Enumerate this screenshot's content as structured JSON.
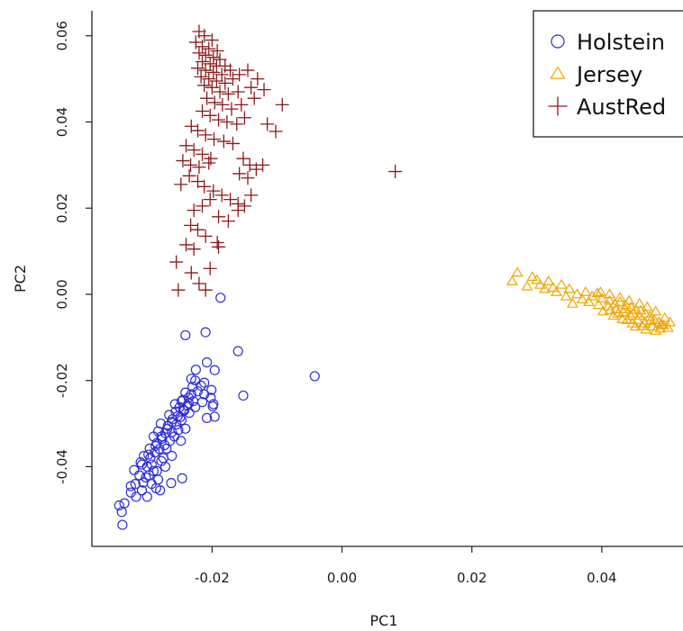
{
  "chart_data": {
    "type": "scatter",
    "title": "",
    "xlabel": "PC1",
    "ylabel": "PC2",
    "xlim": [
      -0.0385,
      0.0525
    ],
    "ylim": [
      -0.0585,
      0.0658
    ],
    "x_ticks": [
      -0.02,
      0.0,
      0.02,
      0.04
    ],
    "x_tick_labels": [
      "-0.02",
      "0.00",
      "0.02",
      "0.04"
    ],
    "y_ticks": [
      -0.04,
      -0.02,
      0.0,
      0.02,
      0.04,
      0.06
    ],
    "y_tick_labels": [
      "-0.04",
      "-0.02",
      "0.00",
      "0.02",
      "0.04",
      "0.06"
    ],
    "grid": false,
    "legend_position": "top-right",
    "series": [
      {
        "name": "Holstein",
        "marker": "circle",
        "color": "#2d2dd6",
        "points": [
          [
            -0.0187,
            -0.0008
          ],
          [
            -0.0241,
            -0.0095
          ],
          [
            -0.021,
            -0.0088
          ],
          [
            -0.016,
            -0.0132
          ],
          [
            -0.0042,
            -0.019
          ],
          [
            -0.0152,
            -0.0235
          ],
          [
            -0.0208,
            -0.0158
          ],
          [
            -0.0225,
            -0.0175
          ],
          [
            -0.0196,
            -0.0176
          ],
          [
            -0.0232,
            -0.0196
          ],
          [
            -0.0212,
            -0.0205
          ],
          [
            -0.0201,
            -0.0222
          ],
          [
            -0.0199,
            -0.026
          ],
          [
            -0.0196,
            -0.0284
          ],
          [
            -0.0208,
            -0.0287
          ],
          [
            -0.0232,
            -0.0232
          ],
          [
            -0.0247,
            -0.0248
          ],
          [
            -0.0246,
            -0.0427
          ],
          [
            -0.0263,
            -0.0438
          ],
          [
            -0.0286,
            -0.045
          ],
          [
            -0.0325,
            -0.046
          ],
          [
            -0.0335,
            -0.0485
          ],
          [
            -0.0343,
            -0.049
          ],
          [
            -0.0339,
            -0.0505
          ],
          [
            -0.0338,
            -0.0535
          ],
          [
            -0.03,
            -0.047
          ],
          [
            -0.028,
            -0.0455
          ],
          [
            -0.0308,
            -0.0455
          ],
          [
            -0.0306,
            -0.0437
          ],
          [
            -0.0318,
            -0.044
          ],
          [
            -0.0297,
            -0.042
          ],
          [
            -0.0285,
            -0.041
          ],
          [
            -0.03,
            -0.04
          ],
          [
            -0.0293,
            -0.0395
          ],
          [
            -0.0278,
            -0.0387
          ],
          [
            -0.0295,
            -0.038
          ],
          [
            -0.031,
            -0.039
          ],
          [
            -0.0305,
            -0.0375
          ],
          [
            -0.0288,
            -0.0367
          ],
          [
            -0.0281,
            -0.0359
          ],
          [
            -0.0296,
            -0.0358
          ],
          [
            -0.0273,
            -0.035
          ],
          [
            -0.0285,
            -0.0345
          ],
          [
            -0.029,
            -0.033
          ],
          [
            -0.0277,
            -0.0335
          ],
          [
            -0.0265,
            -0.034
          ],
          [
            -0.0272,
            -0.0322
          ],
          [
            -0.0283,
            -0.0318
          ],
          [
            -0.0262,
            -0.032
          ],
          [
            -0.0268,
            -0.0305
          ],
          [
            -0.0279,
            -0.03
          ],
          [
            -0.0255,
            -0.0302
          ],
          [
            -0.0261,
            -0.029
          ],
          [
            -0.0249,
            -0.0285
          ],
          [
            -0.0266,
            -0.028
          ],
          [
            -0.0256,
            -0.0272
          ],
          [
            -0.0243,
            -0.027
          ],
          [
            -0.025,
            -0.0262
          ],
          [
            -0.0238,
            -0.0258
          ],
          [
            -0.0257,
            -0.0255
          ],
          [
            -0.0245,
            -0.0245
          ],
          [
            -0.0236,
            -0.024
          ],
          [
            -0.0229,
            -0.0248
          ],
          [
            -0.0241,
            -0.0228
          ],
          [
            -0.0222,
            -0.0225
          ],
          [
            -0.023,
            -0.0215
          ],
          [
            -0.0217,
            -0.0212
          ],
          [
            -0.0226,
            -0.02
          ],
          [
            -0.0212,
            -0.0232
          ],
          [
            -0.0202,
            -0.024
          ],
          [
            -0.0215,
            -0.025
          ],
          [
            -0.0198,
            -0.0255
          ],
          [
            -0.0226,
            -0.0262
          ],
          [
            -0.0235,
            -0.0275
          ],
          [
            -0.0247,
            -0.0292
          ],
          [
            -0.0252,
            -0.0315
          ],
          [
            -0.0241,
            -0.0312
          ],
          [
            -0.0258,
            -0.033
          ],
          [
            -0.027,
            -0.0358
          ],
          [
            -0.0262,
            -0.0375
          ],
          [
            -0.0275,
            -0.038
          ],
          [
            -0.029,
            -0.041
          ],
          [
            -0.0302,
            -0.0425
          ],
          [
            -0.0312,
            -0.042
          ],
          [
            -0.032,
            -0.0408
          ],
          [
            -0.0308,
            -0.0395
          ],
          [
            -0.0298,
            -0.0372
          ],
          [
            -0.0287,
            -0.0352
          ],
          [
            -0.0278,
            -0.033
          ],
          [
            -0.0269,
            -0.0312
          ],
          [
            -0.0262,
            -0.0296
          ],
          [
            -0.0253,
            -0.0283
          ],
          [
            -0.0244,
            -0.0268
          ],
          [
            -0.0236,
            -0.0253
          ],
          [
            -0.0248,
            -0.034
          ],
          [
            -0.0283,
            -0.043
          ],
          [
            -0.0272,
            -0.04
          ],
          [
            -0.0293,
            -0.044
          ],
          [
            -0.0317,
            -0.047
          ],
          [
            -0.0325,
            -0.0445
          ]
        ]
      },
      {
        "name": "Jersey",
        "marker": "triangle",
        "color": "#f2a500",
        "points": [
          [
            0.027,
            0.005
          ],
          [
            0.0262,
            0.003
          ],
          [
            0.0293,
            0.004
          ],
          [
            0.03,
            0.0033
          ],
          [
            0.0285,
            0.0018
          ],
          [
            0.0305,
            0.0022
          ],
          [
            0.0318,
            0.003
          ],
          [
            0.0325,
            0.0015
          ],
          [
            0.0338,
            0.0022
          ],
          [
            0.035,
            0.0012
          ],
          [
            0.0362,
            0.0
          ],
          [
            0.0375,
            0.0005
          ],
          [
            0.0355,
            -0.0022
          ],
          [
            0.037,
            -0.0012
          ],
          [
            0.0385,
            -0.0005
          ],
          [
            0.0393,
            0.0002
          ],
          [
            0.04,
            -0.001
          ],
          [
            0.0412,
            -0.0015
          ],
          [
            0.042,
            -0.0022
          ],
          [
            0.0428,
            -0.0018
          ],
          [
            0.0437,
            -0.0025
          ],
          [
            0.0445,
            -0.003
          ],
          [
            0.0452,
            -0.0036
          ],
          [
            0.046,
            -0.0038
          ],
          [
            0.0467,
            -0.0045
          ],
          [
            0.0474,
            -0.0052
          ],
          [
            0.0481,
            -0.006
          ],
          [
            0.0488,
            -0.0065
          ],
          [
            0.0495,
            -0.0072
          ],
          [
            0.0502,
            -0.0078
          ],
          [
            0.049,
            -0.008
          ],
          [
            0.0478,
            -0.0075
          ],
          [
            0.0466,
            -0.0068
          ],
          [
            0.0455,
            -0.006
          ],
          [
            0.0444,
            -0.005
          ],
          [
            0.0433,
            -0.0042
          ],
          [
            0.0422,
            -0.0035
          ],
          [
            0.041,
            -0.0028
          ],
          [
            0.0402,
            -0.004
          ],
          [
            0.0418,
            -0.005
          ],
          [
            0.0432,
            -0.0058
          ],
          [
            0.0447,
            -0.0068
          ],
          [
            0.0462,
            -0.0074
          ],
          [
            0.0483,
            -0.0085
          ],
          [
            0.047,
            -0.003
          ],
          [
            0.0458,
            -0.0022
          ],
          [
            0.0442,
            -0.0015
          ],
          [
            0.0428,
            -0.0008
          ],
          [
            0.0412,
            0.0
          ],
          [
            0.0398,
            0.0005
          ],
          [
            0.0483,
            -0.004
          ],
          [
            0.0497,
            -0.0055
          ],
          [
            0.0505,
            -0.0065
          ],
          [
            0.038,
            -0.0018
          ],
          [
            0.0395,
            -0.0025
          ],
          [
            0.0345,
            -0.0005
          ],
          [
            0.033,
            0.0005
          ],
          [
            0.0312,
            0.0012
          ],
          [
            0.0448,
            -0.0045
          ],
          [
            0.0436,
            -0.0035
          ],
          [
            0.0425,
            -0.0045
          ],
          [
            0.0413,
            -0.0038
          ],
          [
            0.0475,
            -0.0062
          ],
          [
            0.0492,
            -0.007
          ],
          [
            0.0458,
            -0.005
          ],
          [
            0.0439,
            -0.006
          ],
          [
            0.0452,
            -0.0075
          ],
          [
            0.0468,
            -0.0082
          ]
        ]
      },
      {
        "name": "AustRed",
        "marker": "plus",
        "color": "#8b1a1a",
        "points": [
          [
            -0.022,
            0.061
          ],
          [
            -0.0212,
            0.06
          ],
          [
            -0.02,
            0.059
          ],
          [
            -0.0225,
            0.0585
          ],
          [
            -0.0215,
            0.0575
          ],
          [
            -0.0205,
            0.057
          ],
          [
            -0.0192,
            0.0565
          ],
          [
            -0.022,
            0.056
          ],
          [
            -0.021,
            0.0555
          ],
          [
            -0.0198,
            0.055
          ],
          [
            -0.0188,
            0.0545
          ],
          [
            -0.0215,
            0.054
          ],
          [
            -0.0203,
            0.0535
          ],
          [
            -0.0193,
            0.053
          ],
          [
            -0.018,
            0.053
          ],
          [
            -0.0222,
            0.0525
          ],
          [
            -0.021,
            0.052
          ],
          [
            -0.0198,
            0.0515
          ],
          [
            -0.0185,
            0.051
          ],
          [
            -0.0172,
            0.052
          ],
          [
            -0.0217,
            0.0505
          ],
          [
            -0.0205,
            0.05
          ],
          [
            -0.0193,
            0.0495
          ],
          [
            -0.018,
            0.049
          ],
          [
            -0.0168,
            0.05
          ],
          [
            -0.0158,
            0.051
          ],
          [
            -0.0145,
            0.052
          ],
          [
            -0.013,
            0.05
          ],
          [
            -0.0212,
            0.0485
          ],
          [
            -0.02,
            0.048
          ],
          [
            -0.0188,
            0.047
          ],
          [
            -0.0175,
            0.0465
          ],
          [
            -0.016,
            0.047
          ],
          [
            -0.014,
            0.048
          ],
          [
            -0.012,
            0.0475
          ],
          [
            -0.0092,
            0.044
          ],
          [
            -0.0208,
            0.0455
          ],
          [
            -0.0196,
            0.0445
          ],
          [
            -0.0184,
            0.044
          ],
          [
            -0.017,
            0.043
          ],
          [
            -0.0155,
            0.044
          ],
          [
            -0.0135,
            0.0455
          ],
          [
            -0.0115,
            0.0395
          ],
          [
            -0.0102,
            0.0378
          ],
          [
            -0.0215,
            0.0425
          ],
          [
            -0.0203,
            0.0415
          ],
          [
            -0.019,
            0.0405
          ],
          [
            -0.0177,
            0.04
          ],
          [
            -0.0162,
            0.0395
          ],
          [
            -0.015,
            0.041
          ],
          [
            -0.0232,
            0.039
          ],
          [
            -0.0222,
            0.038
          ],
          [
            -0.021,
            0.037
          ],
          [
            -0.0197,
            0.036
          ],
          [
            -0.0182,
            0.0355
          ],
          [
            -0.0168,
            0.035
          ],
          [
            -0.024,
            0.0345
          ],
          [
            -0.0228,
            0.0335
          ],
          [
            -0.0215,
            0.0325
          ],
          [
            -0.0202,
            0.0315
          ],
          [
            -0.0245,
            0.031
          ],
          [
            -0.0233,
            0.03
          ],
          [
            -0.022,
            0.0295
          ],
          [
            -0.0205,
            0.0305
          ],
          [
            -0.0152,
            0.0315
          ],
          [
            -0.0142,
            0.03
          ],
          [
            -0.0132,
            0.029
          ],
          [
            -0.0122,
            0.03
          ],
          [
            -0.0158,
            0.028
          ],
          [
            -0.0145,
            0.027
          ],
          [
            -0.0235,
            0.0275
          ],
          [
            -0.0222,
            0.0262
          ],
          [
            -0.0248,
            0.0255
          ],
          [
            -0.0212,
            0.025
          ],
          [
            -0.0198,
            0.024
          ],
          [
            -0.0185,
            0.023
          ],
          [
            -0.0172,
            0.022
          ],
          [
            -0.016,
            0.021
          ],
          [
            -0.015,
            0.0205
          ],
          [
            -0.0203,
            0.022
          ],
          [
            -0.0215,
            0.0205
          ],
          [
            -0.0228,
            0.0195
          ],
          [
            -0.019,
            0.018
          ],
          [
            -0.0175,
            0.017
          ],
          [
            -0.0233,
            0.016
          ],
          [
            -0.0222,
            0.015
          ],
          [
            -0.021,
            0.0135
          ],
          [
            -0.024,
            0.0115
          ],
          [
            -0.0228,
            0.0105
          ],
          [
            -0.0192,
            0.012
          ],
          [
            -0.0255,
            0.0075
          ],
          [
            -0.0232,
            0.005
          ],
          [
            -0.0252,
            0.001
          ],
          [
            -0.021,
            0.001
          ],
          [
            -0.022,
            0.0025
          ],
          [
            -0.0203,
            0.006
          ],
          [
            -0.019,
            0.011
          ],
          [
            -0.016,
            0.0195
          ],
          [
            -0.014,
            0.023
          ],
          [
            0.0082,
            0.0285
          ]
        ]
      }
    ]
  }
}
